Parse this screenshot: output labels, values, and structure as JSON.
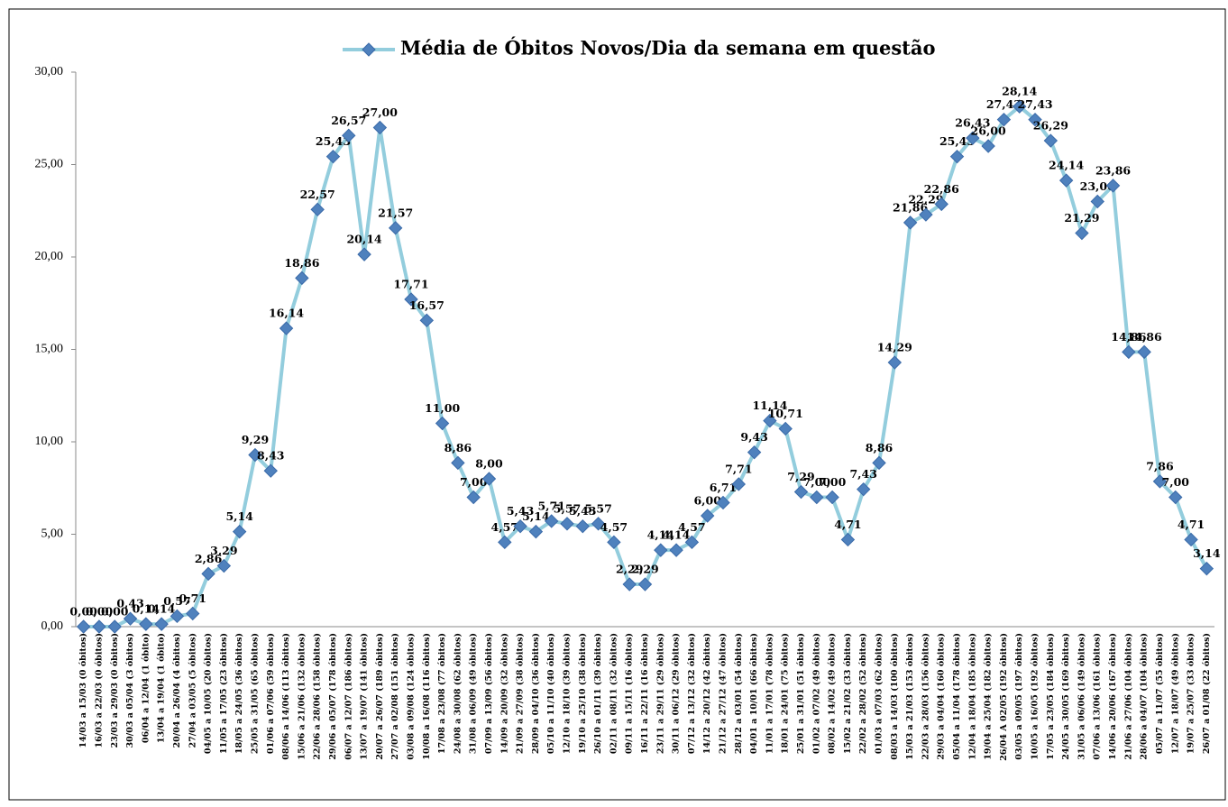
{
  "chart_data": {
    "type": "line",
    "series": [
      {
        "name": "Média de Óbitos Novos/Dia da semana em questão",
        "color": "#93cddd",
        "marker_color": "#4f81bd",
        "values": [
          0,
          0,
          0,
          0.43,
          0.14,
          0.14,
          0.57,
          0.71,
          2.86,
          3.29,
          5.14,
          9.29,
          8.43,
          16.14,
          18.86,
          22.57,
          25.43,
          26.57,
          20.14,
          27,
          21.57,
          17.71,
          16.57,
          11,
          8.86,
          7,
          8,
          4.57,
          5.43,
          5.14,
          5.71,
          5.57,
          5.43,
          5.57,
          4.57,
          2.29,
          2.29,
          4.14,
          4.14,
          4.57,
          6,
          6.71,
          7.71,
          9.43,
          11.14,
          10.71,
          7.29,
          7,
          7,
          4.71,
          7.43,
          8.86,
          14.29,
          21.86,
          22.29,
          22.86,
          25.43,
          26.43,
          26,
          27.43,
          28.14,
          27.43,
          26.29,
          24.14,
          21.29,
          23,
          23.86,
          14.86,
          14.86,
          7.86,
          7,
          4.71,
          3.14
        ],
        "value_labels": [
          "0,00",
          "0,00",
          "0,00",
          "0,43",
          "0,14",
          "0,14",
          "0,57",
          "0,71",
          "2,86",
          "3,29",
          "5,14",
          "9,29",
          "8,43",
          "16,14",
          "18,86",
          "22,57",
          "25,43",
          "26,57",
          "20,14",
          "27,00",
          "21,57",
          "17,71",
          "16,57",
          "11,00",
          "8,86",
          "7,00",
          "8,00",
          "4,57",
          "5,43",
          "5,14",
          "5,71",
          "5,57",
          "5,43",
          "5,57",
          "4,57",
          "2,29",
          "2,29",
          "4,14",
          "4,14",
          "4,57",
          "6,00",
          "6,71",
          "7,71",
          "9,43",
          "11,14",
          "10,71",
          "7,29",
          "7,00",
          "7,00",
          "4,71",
          "7,43",
          "8,86",
          "14,29",
          "21,86",
          "22,29",
          "22,86",
          "25,43",
          "26,43",
          "26,00",
          "27,43",
          "28,14",
          "27,43",
          "26,29",
          "24,14",
          "21,29",
          "23,00",
          "23,86",
          "14,86",
          "14,86",
          "7,86",
          "7,00",
          "4,71",
          "3,14"
        ]
      }
    ],
    "categories": [
      "14/03 a 15/03 (0 óbitos)",
      "16/03 a 22/03 (0 óbitos)",
      "23/03 a 29/03 (0 óbitos)",
      "30/03 a 05/04 (3 óbitos)",
      "06/04 a 12/04 (1 óbito)",
      "13/04 a 19/04 (1 óbito)",
      "20/04 a 26/04 (4 óbitos)",
      "27/04 a 03/05 (5 óbitos)",
      "04/05 a 10/05 (20 óbitos)",
      "11/05 a 17/05 (23 óbitos)",
      "18/05 a 24/05 (36 óbitos)",
      "25/05 a 31/05 (65 óbitos)",
      "01/06 a 07/06 (59 óbitos)",
      "08/06 a 14/06 (113 óbitos)",
      "15/06 a 21/06 (132 óbitos)",
      "22/06 a 28/06 (158 óbitos)",
      "29/06 a 05/07 (178 óbitos)",
      "06/07 a 12/07 (186 óbitos)",
      "13/07 a 19/07 (141 óbitos)",
      "20/07 a 26/07 (189 óbitos)",
      "27/07 a 02/08 (151 óbitos)",
      "03/08 a 09/08 (124 óbitos)",
      "10/08 a 16/08 (116 óbitos)",
      "17/08 a 23/08 (77 óbitos)",
      "24/08 a 30/08 (62 óbitos)",
      "31/08 a 06/09 (49 óbitos)",
      "07/09 a 13/09 (56 óbitos)",
      "14/09 a 20/09 (32 óbitos)",
      "21/09 a 27/09 (38 óbitos)",
      "28/09 a 04/10 (36 óbitos)",
      "05/10 a 11/10 (40 óbitos)",
      "12/10 a 18/10 (39 óbitos)",
      "19/10 a 25/10 (38 óbitos)",
      "26/10 a 01/11 (39 óbitos)",
      "02/11 a 08/11 (32 óbitos)",
      "09/11 a 15/11 (16 óbitos)",
      "16/11 a 22/11 (16 óbitos)",
      "23/11 a 29/11 (29 óbitos)",
      "30/11 a 06/12 (29 óbitos)",
      "07/12 a 13/12 (32 óbitos)",
      "14/12 a 20/12 (42 óbitos)",
      "21/12 a 27/12 (47 óbitos)",
      "28/12 a 03/01 (54 óbitos)",
      "04/01 a 10/01 (66 óbitos)",
      "11/01 a 17/01 (78 óbitos)",
      "18/01 a 24/01 (75 óbitos)",
      "25/01 a 31/01 (51 óbitos)",
      "01/02 a 07/02 (49 óbitos)",
      "08/02 a 14/02 (49 óbitos)",
      "15/02 a 21/02 (33 óbitos)",
      "22/02 a 28/02 (52 óbitos)",
      "01/03 a 07/03 (62 óbitos)",
      "08/03 a 14/03 (100 óbitos)",
      "15/03 a 21/03 (153 óbitos)",
      "22/03 a 28/03 (156 óbitos)",
      "29/03 a 04/04 (160 óbitos)",
      "05/04 a 11/04 (178 óbitos)",
      "12/04 a 18/04 (185 óbitos)",
      "19/04 a 25/04 (182 óbitos)",
      "26/04 A 02/05 (192 óbitos)",
      "03/05 a 09/05 (197 óbitos)",
      "10/05 a 16/05 (192 óbitos)",
      "17/05 a 23/05 (184 óbitos)",
      "24/05 a 30/05 (169 óbitos)",
      "31/05 a 06/06 (149 óbitos)",
      "07/06 a 13/06 (161 óbitos)",
      "14/06 a 20/06 (167 óbitos)",
      "21/06 a 27/06 (104 óbitos)",
      "28/06 a 04/07 (104 óbitos)",
      "05/07 a 11/07 (55 óbitos)",
      "12/07 a 18/07 (49 óbitos)",
      "19/07 a 25/07 (33 óbitos)",
      "26/07 a 01/08 (22 óbitos)"
    ],
    "ylim": [
      0,
      30
    ],
    "yticks": [
      {
        "value": 0,
        "label": "0,00"
      },
      {
        "value": 5,
        "label": "5,00"
      },
      {
        "value": 10,
        "label": "10,00"
      },
      {
        "value": 15,
        "label": "15,00"
      },
      {
        "value": 20,
        "label": "20,00"
      },
      {
        "value": 25,
        "label": "25,00"
      },
      {
        "value": 30,
        "label": "30,00"
      }
    ],
    "legend_position": "top"
  }
}
